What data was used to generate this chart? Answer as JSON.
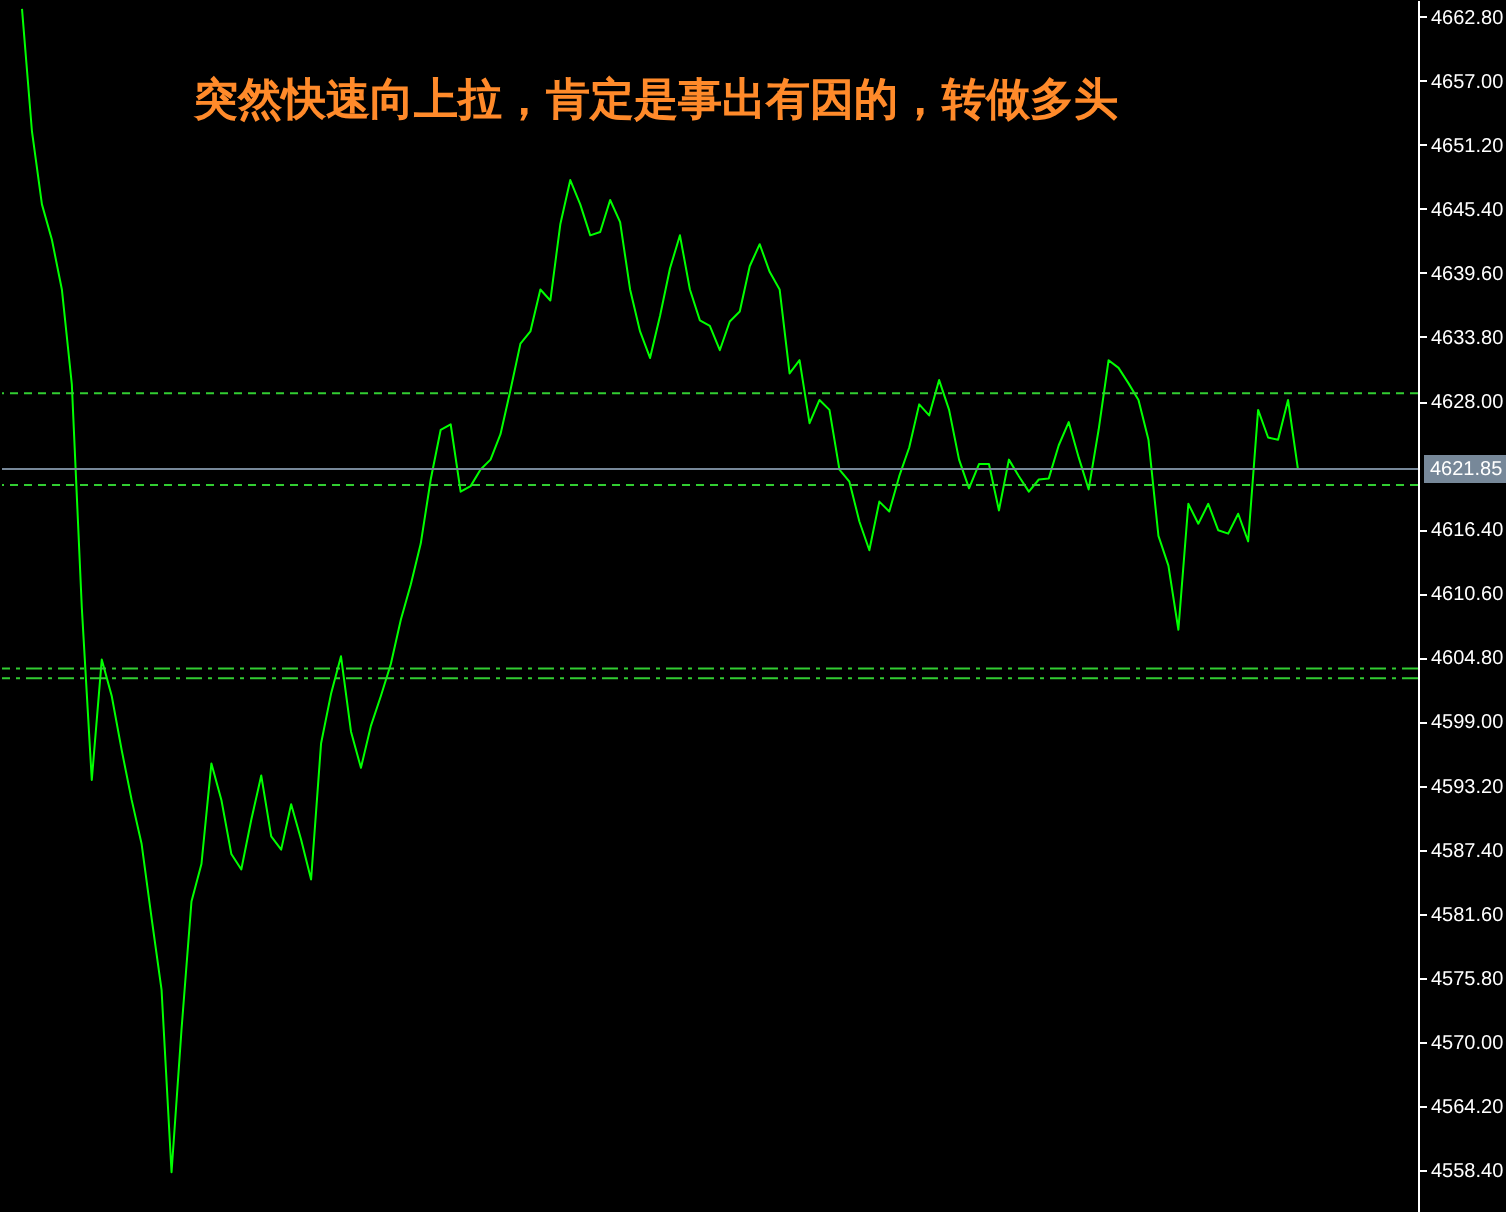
{
  "chart_data": {
    "type": "line",
    "color": "#00ff00",
    "categories": [
      null,
      null,
      null,
      null,
      null,
      null,
      null,
      null,
      null,
      null,
      null,
      null,
      null,
      null,
      null,
      null,
      null,
      null,
      null,
      null,
      null,
      null,
      null,
      null,
      null,
      null,
      null,
      null,
      null,
      null,
      null,
      null,
      null,
      null,
      null,
      null,
      null,
      null,
      null,
      null,
      null,
      null,
      null,
      null,
      null,
      null,
      null,
      null,
      null,
      null,
      null,
      null,
      null,
      null,
      null,
      null,
      null,
      null,
      null,
      null,
      null,
      null,
      null,
      null,
      null,
      null,
      null,
      null,
      null,
      null,
      null,
      null,
      null,
      null,
      null,
      null,
      null,
      null,
      null,
      null,
      null,
      null,
      null,
      null,
      null,
      null,
      null,
      null,
      null,
      null,
      null,
      null,
      null,
      null,
      null,
      null,
      null,
      null,
      null,
      null,
      null,
      null,
      null,
      null,
      null,
      null,
      null,
      null,
      null,
      null,
      null,
      null,
      null,
      null,
      null,
      null,
      null,
      null,
      null,
      null,
      null,
      null,
      null,
      null,
      null,
      null,
      null,
      null,
      null
    ],
    "values": [
      4663.5,
      4652.4,
      4645.8,
      4642.6,
      4638.1,
      4629.5,
      4609.3,
      4593.7,
      4604.6,
      4601.3,
      4596.4,
      4591.9,
      4587.9,
      4581.2,
      4574.7,
      4558.2,
      4571.1,
      4582.7,
      4586.1,
      4595.2,
      4591.9,
      4587.0,
      4585.6,
      4590.1,
      4594.1,
      4588.6,
      4587.4,
      4591.5,
      4588.3,
      4584.7,
      4597.0,
      4601.5,
      4604.9,
      4598.1,
      4594.8,
      4598.6,
      4601.3,
      4604.2,
      4608.2,
      4611.4,
      4615.1,
      4620.9,
      4625.4,
      4625.9,
      4619.8,
      4620.3,
      4621.8,
      4622.7,
      4625.0,
      4629.0,
      4633.2,
      4634.3,
      4638.1,
      4637.1,
      4644.0,
      4648.0,
      4645.8,
      4643.0,
      4643.3,
      4646.2,
      4644.2,
      4638.1,
      4634.3,
      4631.9,
      4635.7,
      4640.0,
      4643.0,
      4638.1,
      4635.3,
      4634.8,
      4632.6,
      4635.2,
      4636.1,
      4640.2,
      4642.2,
      4639.7,
      4638.1,
      4630.5,
      4631.7,
      4626.0,
      4628.1,
      4627.2,
      4621.8,
      4620.7,
      4617.1,
      4614.5,
      4618.9,
      4618.0,
      4621.2,
      4623.8,
      4627.7,
      4626.7,
      4629.9,
      4627.2,
      4622.7,
      4620.1,
      4622.3,
      4622.3,
      4618.1,
      4622.7,
      4621.2,
      4619.8,
      4620.9,
      4621.0,
      4624.0,
      4626.1,
      4622.9,
      4620.0,
      4625.4,
      4631.7,
      4631.0,
      4629.6,
      4628.1,
      4624.5,
      4615.8,
      4613.1,
      4607.3,
      4618.7,
      4616.9,
      4618.7,
      4616.3,
      4616.0,
      4617.8,
      4615.3,
      4627.2,
      4624.7,
      4624.5,
      4628.1,
      4621.8
    ],
    "ylim": [
      4554.6,
      4664.3
    ],
    "yticks": [
      {
        "value": 4662.8,
        "label": "4662.80"
      },
      {
        "value": 4657.0,
        "label": "4657.00"
      },
      {
        "value": 4651.2,
        "label": "4651.20"
      },
      {
        "value": 4645.4,
        "label": "4645.40"
      },
      {
        "value": 4639.6,
        "label": "4639.60"
      },
      {
        "value": 4633.8,
        "label": "4633.80"
      },
      {
        "value": 4628.0,
        "label": "4628.00"
      },
      {
        "value": 4616.4,
        "label": "4616.40"
      },
      {
        "value": 4610.6,
        "label": "4610.60"
      },
      {
        "value": 4604.8,
        "label": "4604.80"
      },
      {
        "value": 4599.0,
        "label": "4599.00"
      },
      {
        "value": 4593.2,
        "label": "4593.20"
      },
      {
        "value": 4587.4,
        "label": "4587.40"
      },
      {
        "value": 4581.6,
        "label": "4581.60"
      },
      {
        "value": 4575.8,
        "label": "4575.80"
      },
      {
        "value": 4570.0,
        "label": "4570.00"
      },
      {
        "value": 4564.2,
        "label": "4564.20"
      },
      {
        "value": 4558.4,
        "label": "4558.40"
      }
    ],
    "grid": false,
    "tick_labels": "y",
    "ref_lines": [
      {
        "axis": "y",
        "value": 4628.7,
        "color": "#32cd32",
        "line_style": "dashed"
      },
      {
        "axis": "y",
        "value": 4621.85,
        "label": "4621.85",
        "color": "#778899",
        "line_style": "solid"
      },
      {
        "axis": "y",
        "value": 4620.4,
        "color": "#32cd32",
        "line_style": "dashed"
      },
      {
        "axis": "y",
        "value": 4603.8,
        "color": "#32cd32",
        "line_style": "dashdot"
      },
      {
        "axis": "y",
        "value": 4602.9,
        "color": "#32cd32",
        "line_style": "dashdot"
      }
    ],
    "annotations": [
      "突然快速向上拉，肯定是事出有因的，转做多头"
    ]
  }
}
